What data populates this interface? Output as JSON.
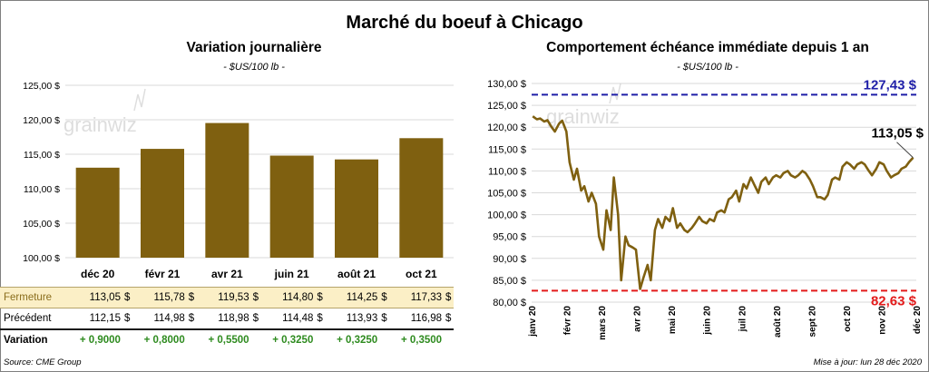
{
  "title": "Marché du boeuf à Chicago",
  "left_panel": {
    "title": "Variation  journalière",
    "subtitle": "- $US/100 lb -",
    "watermark": "grainwiz"
  },
  "right_panel": {
    "title": "Comportement  échéance immédiate depuis 1 an",
    "subtitle": "- $US/100 lb -",
    "watermark": "grainwiz",
    "high_label": "127,43 $",
    "low_label": "82,63 $",
    "last_label": "113,05 $"
  },
  "table": {
    "rows": [
      {
        "label": "Fermeture",
        "values": [
          "113,05",
          "115,78",
          "119,53",
          "114,80",
          "114,25",
          "117,33"
        ],
        "currency": "$"
      },
      {
        "label": "Précédent",
        "values": [
          "112,15",
          "114,98",
          "118,98",
          "114,48",
          "113,93",
          "116,98"
        ],
        "currency": "$"
      },
      {
        "label": "Variation",
        "values": [
          "+ 0,9000",
          "+ 0,8000",
          "+ 0,5500",
          "+ 0,3250",
          "+ 0,3250",
          "+ 0,3500"
        ]
      }
    ]
  },
  "footer": {
    "source": "Source: CME Group",
    "updated": "Mise à jour: lun 28 déc 2020"
  },
  "colors": {
    "bar": "#7f6010",
    "line": "#7f6010",
    "high_line": "#1f1fa8",
    "low_line": "#e31b1b",
    "close_row_bg": "#fbefc6"
  },
  "chart_data": [
    {
      "type": "bar",
      "title": "Variation  journalière",
      "subtitle": "- $US/100 lb -",
      "categories": [
        "déc 20",
        "févr 21",
        "avr 21",
        "juin 21",
        "août 21",
        "oct 21"
      ],
      "values": [
        113.05,
        115.78,
        119.53,
        114.8,
        114.25,
        117.33
      ],
      "ylim": [
        100,
        125
      ],
      "yticks": [
        "100,00 $",
        "105,00 $",
        "110,00 $",
        "115,00 $",
        "120,00 $",
        "125,00 $"
      ],
      "grid": true
    },
    {
      "type": "line",
      "title": "Comportement  échéance immédiate depuis 1 an",
      "subtitle": "- $US/100 lb -",
      "ylim": [
        80,
        130
      ],
      "yticks": [
        "80,00 $",
        "85,00 $",
        "90,00 $",
        "95,00 $",
        "100,00 $",
        "105,00 $",
        "110,00 $",
        "115,00 $",
        "120,00 $",
        "125,00 $",
        "130,00 $"
      ],
      "xticks": [
        "janv 20",
        "févr 20",
        "mars 20",
        "avr 20",
        "mai 20",
        "juin 20",
        "juil 20",
        "août 20",
        "sept 20",
        "oct 20",
        "nov 20",
        "déc 20"
      ],
      "x": [
        "2020-01-02",
        "2020-01-06",
        "2020-01-09",
        "2020-01-13",
        "2020-01-16",
        "2020-01-20",
        "2020-01-23",
        "2020-01-27",
        "2020-01-30",
        "2020-02-03",
        "2020-02-06",
        "2020-02-10",
        "2020-02-13",
        "2020-02-17",
        "2020-02-20",
        "2020-02-24",
        "2020-02-27",
        "2020-03-02",
        "2020-03-05",
        "2020-03-09",
        "2020-03-12",
        "2020-03-16",
        "2020-03-19",
        "2020-03-23",
        "2020-03-26",
        "2020-03-30",
        "2020-04-02",
        "2020-04-06",
        "2020-04-09",
        "2020-04-13",
        "2020-04-16",
        "2020-04-20",
        "2020-04-23",
        "2020-04-27",
        "2020-04-30",
        "2020-05-04",
        "2020-05-07",
        "2020-05-11",
        "2020-05-14",
        "2020-05-18",
        "2020-05-21",
        "2020-05-25",
        "2020-05-28",
        "2020-06-01",
        "2020-06-04",
        "2020-06-08",
        "2020-06-11",
        "2020-06-15",
        "2020-06-18",
        "2020-06-22",
        "2020-06-25",
        "2020-06-29",
        "2020-07-02",
        "2020-07-06",
        "2020-07-09",
        "2020-07-13",
        "2020-07-16",
        "2020-07-20",
        "2020-07-23",
        "2020-07-27",
        "2020-07-30",
        "2020-08-03",
        "2020-08-06",
        "2020-08-10",
        "2020-08-13",
        "2020-08-17",
        "2020-08-20",
        "2020-08-24",
        "2020-08-27",
        "2020-08-31",
        "2020-09-03",
        "2020-09-07",
        "2020-09-10",
        "2020-09-14",
        "2020-09-17",
        "2020-09-21",
        "2020-09-24",
        "2020-09-28",
        "2020-10-01",
        "2020-10-05",
        "2020-10-08",
        "2020-10-12",
        "2020-10-15",
        "2020-10-19",
        "2020-10-22",
        "2020-10-26",
        "2020-10-29",
        "2020-11-02",
        "2020-11-05",
        "2020-11-09",
        "2020-11-12",
        "2020-11-16",
        "2020-11-19",
        "2020-11-23",
        "2020-11-26",
        "2020-11-30",
        "2020-12-03",
        "2020-12-07",
        "2020-12-10",
        "2020-12-14",
        "2020-12-17",
        "2020-12-21",
        "2020-12-24",
        "2020-12-28"
      ],
      "y": [
        122.5,
        121.8,
        122.0,
        121.3,
        121.6,
        120.0,
        119.0,
        120.8,
        121.5,
        119.0,
        112.0,
        108.0,
        110.5,
        105.5,
        106.5,
        103.0,
        105.0,
        102.5,
        95.0,
        92.0,
        101.0,
        96.5,
        108.5,
        100.0,
        85.0,
        95.0,
        93.0,
        92.5,
        92.0,
        83.0,
        85.5,
        88.5,
        85.0,
        96.5,
        99.0,
        97.0,
        99.5,
        98.5,
        101.5,
        97.0,
        98.0,
        96.5,
        96.0,
        97.0,
        98.0,
        99.5,
        98.5,
        98.0,
        99.0,
        98.5,
        100.5,
        101.0,
        100.5,
        103.5,
        104.0,
        105.5,
        103.0,
        107.0,
        106.0,
        108.5,
        107.0,
        105.0,
        107.5,
        108.5,
        107.0,
        108.5,
        109.0,
        108.5,
        109.5,
        110.0,
        109.0,
        108.5,
        109.0,
        110.0,
        109.5,
        108.0,
        106.5,
        104.0,
        104.0,
        103.5,
        104.5,
        108.0,
        108.5,
        108.0,
        111.0,
        112.0,
        111.5,
        110.5,
        111.5,
        112.0,
        111.5,
        110.0,
        109.0,
        110.5,
        112.0,
        111.5,
        110.0,
        108.5,
        109.0,
        109.5,
        110.5,
        111.0,
        112.0,
        113.05
      ],
      "hlines": [
        {
          "value": 127.43,
          "label": "127,43 $"
        },
        {
          "value": 82.63,
          "label": "82,63 $"
        }
      ],
      "last_label": "113,05 $",
      "grid": true
    }
  ]
}
